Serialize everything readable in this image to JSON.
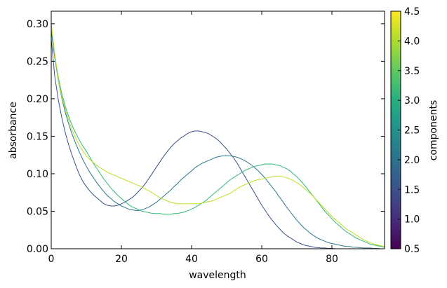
{
  "chart_data": {
    "type": "line",
    "xlabel": "wavelength",
    "ylabel": "absorbance",
    "xlim": [
      0,
      95
    ],
    "ylim": [
      0,
      0.3167
    ],
    "x_ticks": [
      0,
      20,
      40,
      60,
      80
    ],
    "x_tick_labels": [
      "0",
      "20",
      "40",
      "60",
      "80"
    ],
    "y_ticks": [
      0,
      0.05,
      0.1,
      0.15,
      0.2,
      0.25,
      0.3
    ],
    "y_tick_labels": [
      "0.00",
      "0.05",
      "0.10",
      "0.15",
      "0.20",
      "0.25",
      "0.30"
    ],
    "grid": false,
    "colorbar": {
      "label": "components",
      "colormap": "viridis",
      "range": [
        0.5,
        4.5
      ],
      "ticks": [
        0.5,
        1.0,
        1.5,
        2.0,
        2.5,
        3.0,
        3.5,
        4.0,
        4.5
      ],
      "tick_labels": [
        "0.5",
        "1.0",
        "1.5",
        "2.0",
        "2.5",
        "3.0",
        "3.5",
        "4.0",
        "4.5"
      ]
    },
    "series": [
      {
        "color": "#3b528b",
        "x": [
          0,
          1,
          2,
          3,
          4,
          5,
          6,
          7,
          8,
          9,
          10,
          11,
          12,
          13,
          14,
          15,
          16,
          17,
          18,
          19,
          20,
          21,
          22,
          23,
          24,
          25,
          26,
          27,
          28,
          29,
          30,
          31,
          32,
          33,
          34,
          35,
          36,
          37,
          38,
          39,
          40,
          41,
          42,
          43,
          44,
          45,
          46,
          47,
          48,
          49,
          50,
          51,
          52,
          53,
          54,
          55,
          56,
          57,
          58,
          59,
          60,
          61,
          62,
          63,
          64,
          65,
          66,
          67,
          68,
          69,
          70,
          71,
          72,
          73,
          74,
          75,
          76,
          77,
          78,
          79,
          80,
          81,
          82,
          83,
          84,
          85,
          86,
          87,
          88,
          89,
          90,
          91,
          92,
          93,
          94,
          95
        ],
        "y": [
          0.28,
          0.23,
          0.199,
          0.175,
          0.155,
          0.138,
          0.124,
          0.111,
          0.099,
          0.09,
          0.083,
          0.077,
          0.072,
          0.068,
          0.064,
          0.06,
          0.058,
          0.057,
          0.057,
          0.058,
          0.06,
          0.062,
          0.065,
          0.068,
          0.072,
          0.077,
          0.082,
          0.088,
          0.095,
          0.102,
          0.109,
          0.116,
          0.123,
          0.129,
          0.135,
          0.14,
          0.144,
          0.148,
          0.151,
          0.154,
          0.156,
          0.157,
          0.157,
          0.156,
          0.155,
          0.153,
          0.15,
          0.147,
          0.143,
          0.138,
          0.133,
          0.127,
          0.121,
          0.114,
          0.106,
          0.098,
          0.09,
          0.082,
          0.074,
          0.066,
          0.058,
          0.051,
          0.044,
          0.038,
          0.032,
          0.027,
          0.022,
          0.018,
          0.015,
          0.012,
          0.009,
          0.007,
          0.005,
          0.004,
          0.003,
          0.002,
          0.0015,
          0.001,
          0.001,
          0.0005,
          0.0005,
          0.0,
          0.0,
          0.0,
          0.0,
          0.0,
          0.0,
          0.0,
          0.0,
          0.0,
          0.0,
          0.0,
          0.0,
          0.0,
          0.0,
          0.0
        ]
      },
      {
        "color": "#2a788e",
        "x": [
          0,
          1,
          2,
          3,
          4,
          5,
          6,
          7,
          8,
          9,
          10,
          11,
          12,
          13,
          14,
          15,
          16,
          17,
          18,
          19,
          20,
          21,
          22,
          23,
          24,
          25,
          26,
          27,
          28,
          29,
          30,
          31,
          32,
          33,
          34,
          35,
          36,
          37,
          38,
          39,
          40,
          41,
          42,
          43,
          44,
          45,
          46,
          47,
          48,
          49,
          50,
          51,
          52,
          53,
          54,
          55,
          56,
          57,
          58,
          59,
          60,
          61,
          62,
          63,
          64,
          65,
          66,
          67,
          68,
          69,
          70,
          71,
          72,
          73,
          74,
          75,
          76,
          77,
          78,
          79,
          80,
          81,
          82,
          83,
          84,
          85,
          86,
          87,
          88,
          89,
          90,
          91,
          92,
          93,
          94,
          95
        ],
        "y": [
          0.29,
          0.255,
          0.225,
          0.201,
          0.182,
          0.166,
          0.152,
          0.14,
          0.129,
          0.119,
          0.11,
          0.102,
          0.095,
          0.088,
          0.082,
          0.076,
          0.071,
          0.067,
          0.063,
          0.06,
          0.057,
          0.055,
          0.053,
          0.052,
          0.051,
          0.051,
          0.052,
          0.054,
          0.056,
          0.059,
          0.062,
          0.066,
          0.07,
          0.074,
          0.078,
          0.083,
          0.087,
          0.092,
          0.096,
          0.1,
          0.104,
          0.108,
          0.111,
          0.114,
          0.116,
          0.118,
          0.12,
          0.122,
          0.123,
          0.124,
          0.124,
          0.124,
          0.123,
          0.122,
          0.12,
          0.118,
          0.115,
          0.112,
          0.108,
          0.104,
          0.099,
          0.094,
          0.088,
          0.082,
          0.076,
          0.069,
          0.063,
          0.056,
          0.05,
          0.044,
          0.038,
          0.033,
          0.028,
          0.024,
          0.02,
          0.017,
          0.014,
          0.012,
          0.01,
          0.008,
          0.007,
          0.006,
          0.005,
          0.004,
          0.003,
          0.003,
          0.002,
          0.002,
          0.0015,
          0.001,
          0.001,
          0.001,
          0.0005,
          0.0005,
          0.0,
          0.0
        ]
      },
      {
        "color": "#35b779",
        "x": [
          0,
          1,
          2,
          3,
          4,
          5,
          6,
          7,
          8,
          9,
          10,
          11,
          12,
          13,
          14,
          15,
          16,
          17,
          18,
          19,
          20,
          21,
          22,
          23,
          24,
          25,
          26,
          27,
          28,
          29,
          30,
          31,
          32,
          33,
          34,
          35,
          36,
          37,
          38,
          39,
          40,
          41,
          42,
          43,
          44,
          45,
          46,
          47,
          48,
          49,
          50,
          51,
          52,
          53,
          54,
          55,
          56,
          57,
          58,
          59,
          60,
          61,
          62,
          63,
          64,
          65,
          66,
          67,
          68,
          69,
          70,
          71,
          72,
          73,
          74,
          75,
          76,
          77,
          78,
          79,
          80,
          81,
          82,
          83,
          84,
          85,
          86,
          87,
          88,
          89,
          90,
          91,
          92,
          93,
          94,
          95
        ],
        "y": [
          0.3,
          0.258,
          0.229,
          0.207,
          0.19,
          0.176,
          0.164,
          0.154,
          0.145,
          0.137,
          0.13,
          0.122,
          0.114,
          0.107,
          0.1,
          0.093,
          0.087,
          0.081,
          0.076,
          0.071,
          0.067,
          0.063,
          0.059,
          0.056,
          0.054,
          0.052,
          0.05,
          0.049,
          0.048,
          0.047,
          0.047,
          0.047,
          0.046,
          0.046,
          0.046,
          0.047,
          0.047,
          0.048,
          0.049,
          0.051,
          0.053,
          0.055,
          0.058,
          0.061,
          0.064,
          0.068,
          0.072,
          0.076,
          0.08,
          0.084,
          0.088,
          0.092,
          0.095,
          0.098,
          0.101,
          0.104,
          0.106,
          0.108,
          0.11,
          0.111,
          0.112,
          0.113,
          0.113,
          0.113,
          0.112,
          0.111,
          0.109,
          0.107,
          0.104,
          0.1,
          0.096,
          0.091,
          0.086,
          0.08,
          0.074,
          0.068,
          0.062,
          0.056,
          0.05,
          0.045,
          0.04,
          0.035,
          0.031,
          0.027,
          0.023,
          0.02,
          0.017,
          0.014,
          0.012,
          0.01,
          0.008,
          0.006,
          0.005,
          0.004,
          0.003,
          0.002
        ]
      },
      {
        "color": "#bddf26",
        "x": [
          0,
          1,
          2,
          3,
          4,
          5,
          6,
          7,
          8,
          9,
          10,
          11,
          12,
          13,
          14,
          15,
          16,
          17,
          18,
          19,
          20,
          21,
          22,
          23,
          24,
          25,
          26,
          27,
          28,
          29,
          30,
          31,
          32,
          33,
          34,
          35,
          36,
          37,
          38,
          39,
          40,
          41,
          42,
          43,
          44,
          45,
          46,
          47,
          48,
          49,
          50,
          51,
          52,
          53,
          54,
          55,
          56,
          57,
          58,
          59,
          60,
          61,
          62,
          63,
          64,
          65,
          66,
          67,
          68,
          69,
          70,
          71,
          72,
          73,
          74,
          75,
          76,
          77,
          78,
          79,
          80,
          81,
          82,
          83,
          84,
          85,
          86,
          87,
          88,
          89,
          90,
          91,
          92,
          93,
          94,
          95
        ],
        "y": [
          0.3,
          0.26,
          0.226,
          0.203,
          0.186,
          0.171,
          0.158,
          0.147,
          0.138,
          0.13,
          0.124,
          0.119,
          0.115,
          0.111,
          0.108,
          0.105,
          0.102,
          0.1,
          0.098,
          0.096,
          0.094,
          0.092,
          0.09,
          0.088,
          0.086,
          0.084,
          0.082,
          0.079,
          0.077,
          0.074,
          0.071,
          0.068,
          0.066,
          0.064,
          0.062,
          0.061,
          0.06,
          0.06,
          0.06,
          0.06,
          0.06,
          0.06,
          0.06,
          0.061,
          0.062,
          0.063,
          0.064,
          0.066,
          0.068,
          0.07,
          0.072,
          0.074,
          0.077,
          0.08,
          0.083,
          0.085,
          0.087,
          0.089,
          0.091,
          0.092,
          0.093,
          0.094,
          0.095,
          0.096,
          0.097,
          0.097,
          0.096,
          0.095,
          0.093,
          0.091,
          0.088,
          0.085,
          0.081,
          0.077,
          0.073,
          0.068,
          0.063,
          0.058,
          0.053,
          0.048,
          0.043,
          0.039,
          0.035,
          0.031,
          0.027,
          0.024,
          0.021,
          0.018,
          0.015,
          0.012,
          0.01,
          0.008,
          0.006,
          0.005,
          0.004,
          0.003
        ]
      }
    ]
  }
}
